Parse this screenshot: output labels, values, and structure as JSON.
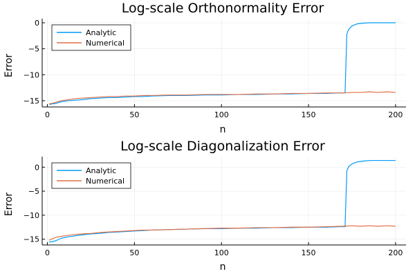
{
  "chart_data": [
    {
      "type": "line",
      "title": "Log-scale Orthonormality Error",
      "xlabel": "n",
      "ylabel": "Error",
      "xlim": [
        -3,
        206
      ],
      "ylim": [
        -16.2,
        0.8
      ],
      "xticks": [
        0,
        50,
        100,
        150,
        200
      ],
      "yticks": [
        0,
        -5,
        -10,
        -15
      ],
      "ytick_labels": [
        "0",
        "−5",
        "−10",
        "−15"
      ],
      "grid": true,
      "legend_position": "top-left",
      "series": [
        {
          "name": "Analytic",
          "color": "#009af9",
          "x": [
            1,
            3,
            5,
            8,
            12,
            16,
            20,
            25,
            30,
            35,
            40,
            45,
            50,
            55,
            60,
            70,
            80,
            90,
            100,
            110,
            120,
            130,
            140,
            150,
            160,
            168,
            171,
            172,
            173,
            175,
            178,
            182,
            186,
            190,
            195,
            200
          ],
          "y": [
            -15.7,
            -15.6,
            -15.5,
            -15.2,
            -15.0,
            -14.9,
            -14.8,
            -14.6,
            -14.5,
            -14.4,
            -14.4,
            -14.3,
            -14.2,
            -14.2,
            -14.1,
            -14.0,
            -14.0,
            -13.9,
            -13.9,
            -13.8,
            -13.8,
            -13.7,
            -13.7,
            -13.6,
            -13.6,
            -13.5,
            -13.5,
            -2.2,
            -1.3,
            -0.6,
            -0.2,
            -0.05,
            0.0,
            0.0,
            0.0,
            0.0
          ]
        },
        {
          "name": "Numerical",
          "color": "#e26f46",
          "x": [
            1,
            3,
            5,
            8,
            12,
            16,
            20,
            25,
            30,
            35,
            40,
            45,
            50,
            55,
            60,
            70,
            80,
            90,
            100,
            110,
            120,
            130,
            140,
            150,
            160,
            170,
            175,
            180,
            185,
            190,
            195,
            200
          ],
          "y": [
            -15.6,
            -15.5,
            -15.3,
            -15.0,
            -14.8,
            -14.6,
            -14.5,
            -14.4,
            -14.3,
            -14.2,
            -14.2,
            -14.1,
            -14.1,
            -14.0,
            -14.0,
            -13.9,
            -13.9,
            -13.8,
            -13.8,
            -13.8,
            -13.7,
            -13.7,
            -13.6,
            -13.6,
            -13.5,
            -13.5,
            -13.4,
            -13.4,
            -13.3,
            -13.4,
            -13.3,
            -13.4
          ]
        }
      ]
    },
    {
      "type": "line",
      "title": "Log-scale Diagonalization Error",
      "xlabel": "n",
      "ylabel": "Error",
      "xlim": [
        -3,
        206
      ],
      "ylim": [
        -16.2,
        2.2
      ],
      "xticks": [
        0,
        50,
        100,
        150,
        200
      ],
      "yticks": [
        0,
        -5,
        -10,
        -15
      ],
      "ytick_labels": [
        "0",
        "−5",
        "−10",
        "−15"
      ],
      "grid": true,
      "legend_position": "top-left",
      "series": [
        {
          "name": "Analytic",
          "color": "#009af9",
          "x": [
            1,
            3,
            5,
            8,
            12,
            16,
            20,
            25,
            30,
            35,
            40,
            45,
            50,
            55,
            60,
            70,
            80,
            90,
            100,
            110,
            120,
            130,
            140,
            150,
            160,
            168,
            171,
            172,
            173,
            175,
            178,
            182,
            186,
            190,
            195,
            200
          ],
          "y": [
            -15.6,
            -15.5,
            -15.3,
            -14.8,
            -14.5,
            -14.3,
            -14.1,
            -13.9,
            -13.8,
            -13.6,
            -13.5,
            -13.4,
            -13.3,
            -13.2,
            -13.1,
            -13.0,
            -12.9,
            -12.8,
            -12.8,
            -12.7,
            -12.7,
            -12.6,
            -12.6,
            -12.5,
            -12.5,
            -12.4,
            -12.4,
            -0.8,
            0.1,
            0.7,
            1.1,
            1.3,
            1.4,
            1.4,
            1.4,
            1.4
          ]
        },
        {
          "name": "Numerical",
          "color": "#e26f46",
          "x": [
            1,
            3,
            5,
            8,
            12,
            16,
            20,
            25,
            30,
            35,
            40,
            45,
            50,
            55,
            60,
            70,
            80,
            90,
            100,
            110,
            120,
            130,
            140,
            150,
            160,
            170,
            175,
            180,
            185,
            190,
            195,
            200
          ],
          "y": [
            -15.2,
            -14.9,
            -14.6,
            -14.4,
            -14.2,
            -14.0,
            -13.9,
            -13.8,
            -13.6,
            -13.5,
            -13.4,
            -13.3,
            -13.2,
            -13.1,
            -13.1,
            -13.0,
            -12.9,
            -12.8,
            -12.7,
            -12.7,
            -12.6,
            -12.6,
            -12.5,
            -12.5,
            -12.4,
            -12.3,
            -12.2,
            -12.3,
            -12.2,
            -12.3,
            -12.2,
            -12.3
          ]
        }
      ]
    }
  ]
}
